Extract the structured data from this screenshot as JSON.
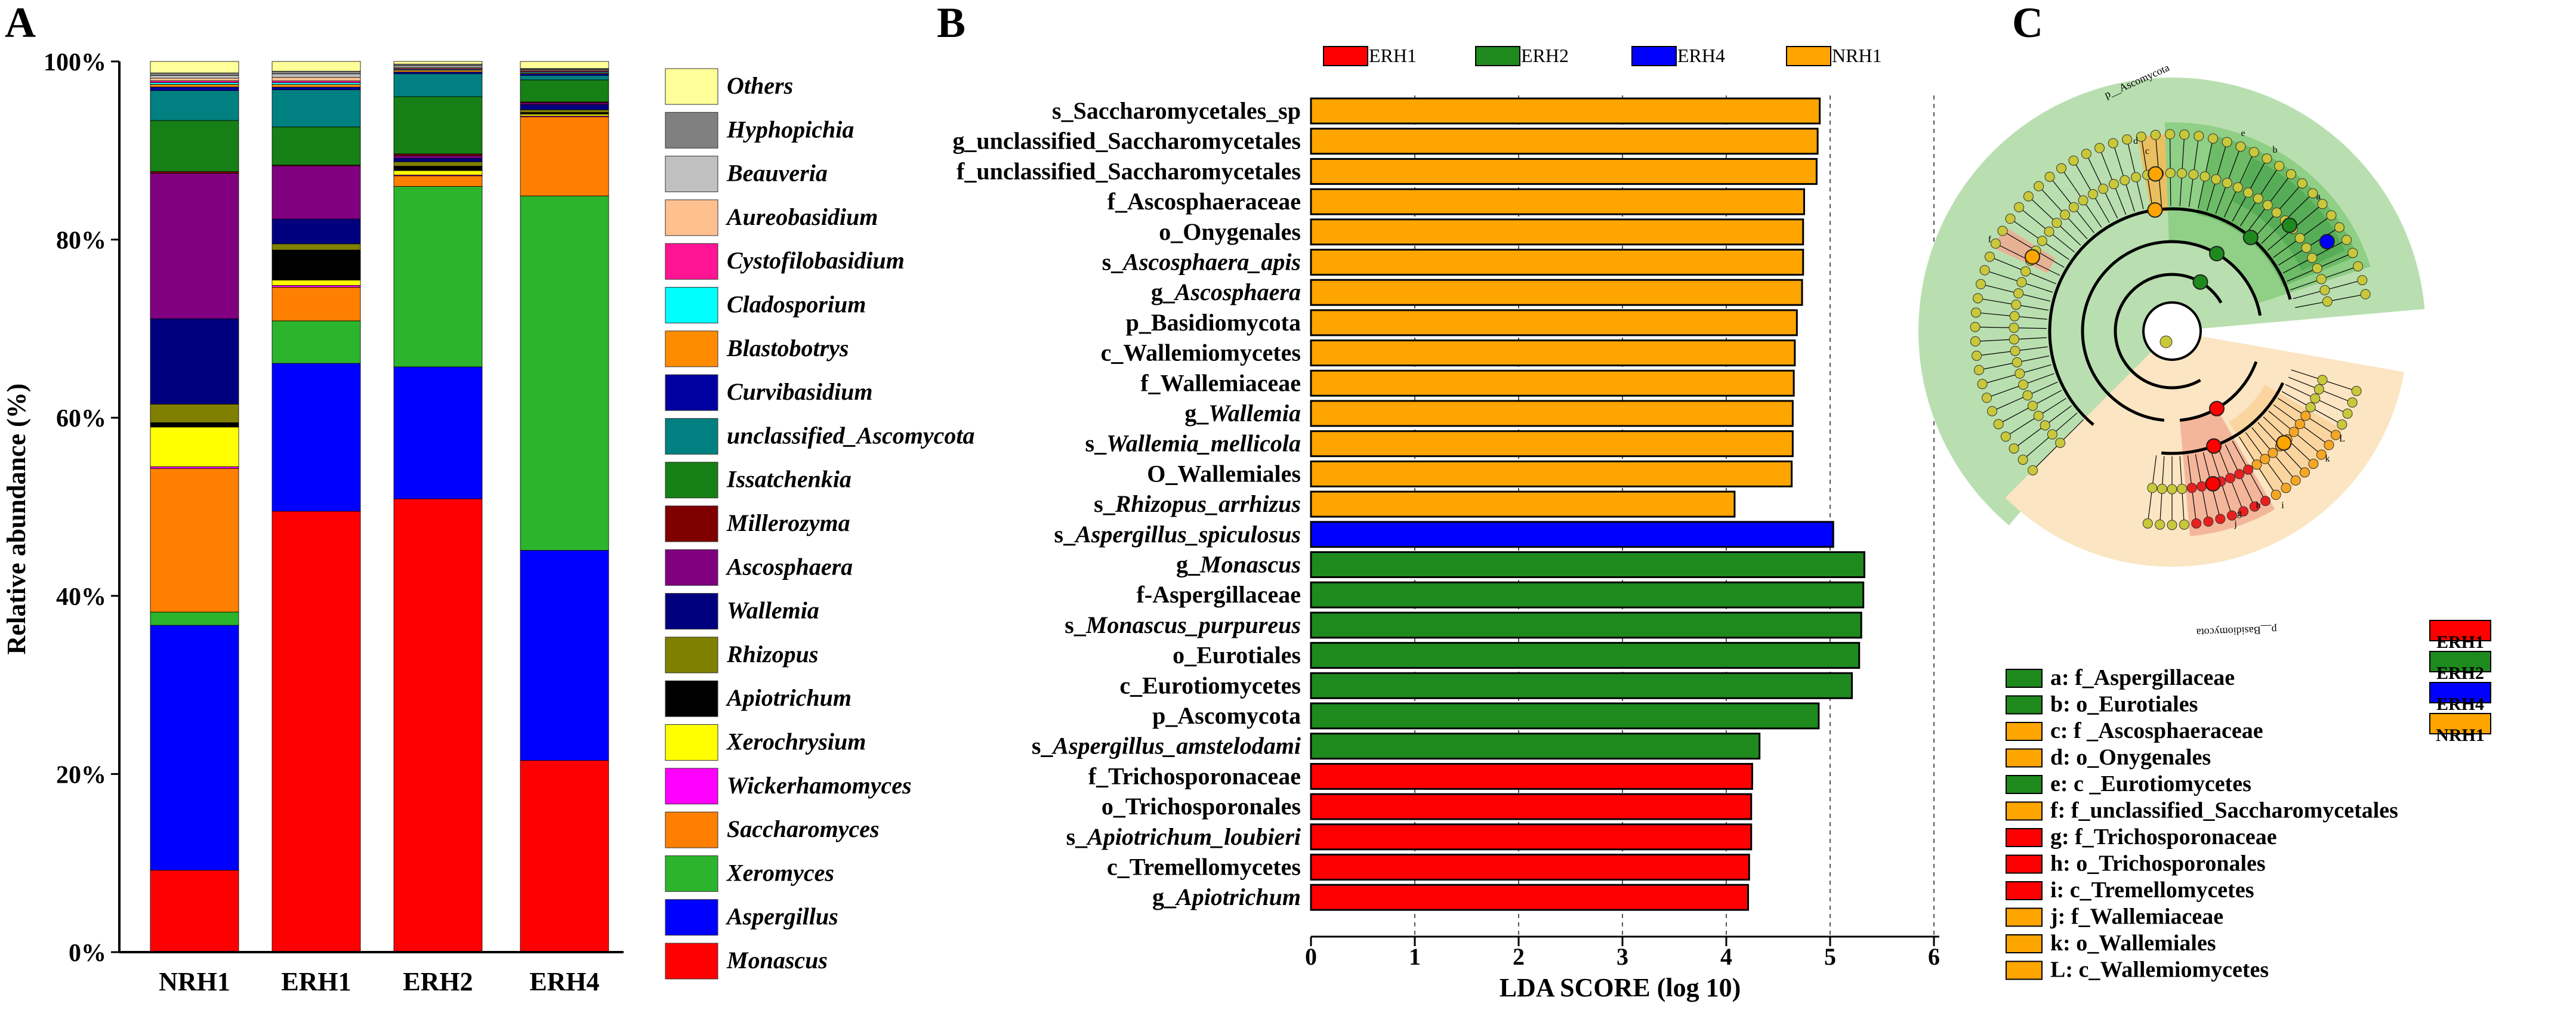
{
  "panels": {
    "a": "A",
    "b": "B",
    "c": "C"
  },
  "colors": {
    "ERH1": "#ff0000",
    "ERH2": "#1e8a1e",
    "ERH4": "#0000ff",
    "NRH1": "#ffa500",
    "grid": "#555555",
    "clade_green": "#b9dfb0",
    "clade_green_dark": "#57ad57",
    "clade_peach": "#fbe5c2",
    "clade_red": "#f2a58e",
    "node": "#c8c83a"
  },
  "chart_data": [
    {
      "id": "A",
      "type": "bar",
      "stacked": true,
      "title": "",
      "xlabel": "",
      "ylabel": "Relative abundance (%)",
      "ylim": [
        0,
        100
      ],
      "yticks": [
        "0%",
        "20%",
        "40%",
        "60%",
        "80%",
        "100%"
      ],
      "categories": [
        "NRH1",
        "ERH1",
        "ERH2",
        "ERH4"
      ],
      "series": [
        {
          "name": "Monascus",
          "color": "#ff0000",
          "values": [
            9.3,
            49.8,
            51.5,
            21.8
          ]
        },
        {
          "name": "Aspergillus",
          "color": "#0000ff",
          "values": [
            27.8,
            16.7,
            15.0,
            23.9
          ]
        },
        {
          "name": "Xeromyces",
          "color": "#2cb52c",
          "values": [
            1.5,
            4.8,
            20.5,
            40.3
          ]
        },
        {
          "name": "Saccharomyces",
          "color": "#ff7f00",
          "values": [
            16.3,
            3.8,
            1.2,
            9.0
          ]
        },
        {
          "name": "Wickerhamomyces",
          "color": "#ff00ff",
          "values": [
            0.2,
            0.2,
            0.1,
            0.1
          ]
        },
        {
          "name": "Xerochrysium",
          "color": "#ffff00",
          "values": [
            4.5,
            0.6,
            0.5,
            0.2
          ]
        },
        {
          "name": "Apiotrichum",
          "color": "#000000",
          "values": [
            0.5,
            3.4,
            0.5,
            0.2
          ]
        },
        {
          "name": "Rhizopus",
          "color": "#808000",
          "values": [
            2.1,
            0.7,
            0.5,
            0.3
          ]
        },
        {
          "name": "Wallemia",
          "color": "#00007f",
          "values": [
            9.7,
            2.8,
            0.4,
            0.6
          ]
        },
        {
          "name": "Ascosphaera",
          "color": "#800080",
          "values": [
            16.5,
            6.0,
            0.3,
            0.2
          ]
        },
        {
          "name": "Millerozyma",
          "color": "#800000",
          "values": [
            0.2,
            0.1,
            0.2,
            0.1
          ]
        },
        {
          "name": "Issatchenkia",
          "color": "#168016",
          "values": [
            5.8,
            4.3,
            6.5,
            2.5
          ]
        },
        {
          "name": "unclassified_Ascomycota",
          "color": "#008080",
          "values": [
            3.4,
            4.2,
            2.6,
            0.5
          ]
        },
        {
          "name": "Curvibasidium",
          "color": "#0000a0",
          "values": [
            0.4,
            0.3,
            0.2,
            0.2
          ]
        },
        {
          "name": "Blastobotrys",
          "color": "#ff8c00",
          "values": [
            0.3,
            0.3,
            0.2,
            0.1
          ]
        },
        {
          "name": "Cladosporium",
          "color": "#00ffff",
          "values": [
            0.2,
            0.2,
            0.1,
            0.1
          ]
        },
        {
          "name": "Cystofilobasidium",
          "color": "#ff1493",
          "values": [
            0.2,
            0.2,
            0.1,
            0.1
          ]
        },
        {
          "name": "Aureobasidium",
          "color": "#ffc090",
          "values": [
            0.3,
            0.4,
            0.1,
            0.1
          ]
        },
        {
          "name": "Beauveria",
          "color": "#c0c0c0",
          "values": [
            0.3,
            0.4,
            0.2,
            0.1
          ]
        },
        {
          "name": "Hyphopichia",
          "color": "#808080",
          "values": [
            0.3,
            0.3,
            0.2,
            0.1
          ]
        },
        {
          "name": "Others",
          "color": "#ffff99",
          "values": [
            1.3,
            1.1,
            0.3,
            0.8
          ]
        }
      ]
    },
    {
      "id": "B",
      "type": "bar",
      "orientation": "horizontal",
      "title": "",
      "xlabel": "LDA SCORE (log 10)",
      "xlim": [
        0,
        6
      ],
      "xticks": [
        "0",
        "1",
        "2",
        "3",
        "4",
        "5",
        "6"
      ],
      "groups": [
        "ERH1",
        "ERH2",
        "ERH4",
        "NRH1"
      ],
      "bars": [
        {
          "label": "s_Saccharomycetales_sp",
          "italic": "",
          "value": 4.9,
          "group": "NRH1"
        },
        {
          "label": "g_unclassified_Saccharomycetales",
          "italic": "",
          "value": 4.88,
          "group": "NRH1"
        },
        {
          "label": "f_unclassified_Saccharomycetales",
          "italic": "",
          "value": 4.87,
          "group": "NRH1"
        },
        {
          "label": "f_Ascosphaeraceae",
          "italic": "",
          "value": 4.75,
          "group": "NRH1"
        },
        {
          "label": "o_Onygenales",
          "italic": "",
          "value": 4.74,
          "group": "NRH1"
        },
        {
          "label": "s_",
          "italic": "Ascosphaera_apis",
          "value": 4.74,
          "group": "NRH1"
        },
        {
          "label": "g_",
          "italic": "Ascosphaera",
          "value": 4.73,
          "group": "NRH1"
        },
        {
          "label": "p_Basidiomycota",
          "italic": "",
          "value": 4.68,
          "group": "NRH1"
        },
        {
          "label": "c_Wallemiomycetes",
          "italic": "",
          "value": 4.66,
          "group": "NRH1"
        },
        {
          "label": "f_Wallemiaceae",
          "italic": "",
          "value": 4.65,
          "group": "NRH1"
        },
        {
          "label": "g_",
          "italic": "Wallemia",
          "value": 4.64,
          "group": "NRH1"
        },
        {
          "label": "s_",
          "italic": "Wallemia_mellicola",
          "value": 4.64,
          "group": "NRH1"
        },
        {
          "label": "O_Wallemiales",
          "italic": "",
          "value": 4.63,
          "group": "NRH1"
        },
        {
          "label": "s_",
          "italic": "Rhizopus_arrhizus",
          "value": 4.08,
          "group": "NRH1"
        },
        {
          "label": "s_",
          "italic": "Aspergillus_spiculosus",
          "value": 5.03,
          "group": "ERH4"
        },
        {
          "label": "g_",
          "italic": "Monascus",
          "value": 5.33,
          "group": "ERH2"
        },
        {
          "label": "f-Aspergillaceae",
          "italic": "",
          "value": 5.32,
          "group": "ERH2"
        },
        {
          "label": "s_",
          "italic": "Monascus_purpureus",
          "value": 5.3,
          "group": "ERH2"
        },
        {
          "label": "o_Eurotiales",
          "italic": "",
          "value": 5.28,
          "group": "ERH2"
        },
        {
          "label": "c_Eurotiomycetes",
          "italic": "",
          "value": 5.21,
          "group": "ERH2"
        },
        {
          "label": "p_Ascomycota",
          "italic": "",
          "value": 4.89,
          "group": "ERH2"
        },
        {
          "label": "s_",
          "italic": "Aspergillus_amstelodami",
          "value": 4.32,
          "group": "ERH2"
        },
        {
          "label": "f_Trichosporonaceae",
          "italic": "",
          "value": 4.25,
          "group": "ERH1"
        },
        {
          "label": "o_Trichosporonales",
          "italic": "",
          "value": 4.24,
          "group": "ERH1"
        },
        {
          "label": "s_",
          "italic": "Apiotrichum_loubieri",
          "value": 4.24,
          "group": "ERH1"
        },
        {
          "label": "c_Tremellomycetes",
          "italic": "",
          "value": 4.22,
          "group": "ERH1"
        },
        {
          "label": "g_",
          "italic": "Apiotrichum",
          "value": 4.21,
          "group": "ERH1"
        }
      ]
    }
  ],
  "cladogram": {
    "clade_labels": [
      "p__Ascomycota",
      "p__Basidiomycota"
    ],
    "node_letters": [
      "a",
      "b",
      "c",
      "d",
      "e",
      "f",
      "g",
      "h",
      "i",
      "j",
      "k",
      "L"
    ],
    "legend_groups": [
      "ERH1",
      "ERH2",
      "ERH4",
      "NRH1"
    ],
    "key": [
      {
        "text": "a: f_Aspergillaceae",
        "group": "ERH2"
      },
      {
        "text": "b: o_Eurotiales",
        "group": "ERH2"
      },
      {
        "text": "c: f _Ascosphaeraceae",
        "group": "NRH1"
      },
      {
        "text": "d: o_Onygenales",
        "group": "NRH1"
      },
      {
        "text": "e: c _Eurotiomycetes",
        "group": "ERH2"
      },
      {
        "text": "f: f_unclassified_Saccharomycetales",
        "group": "NRH1"
      },
      {
        "text": "g: f_Trichosporonaceae",
        "group": "ERH1"
      },
      {
        "text": "h: o_Trichosporonales",
        "group": "ERH1"
      },
      {
        "text": "i: c_Tremellomycetes",
        "group": "ERH1"
      },
      {
        "text": "j: f_Wallemiaceae",
        "group": "NRH1"
      },
      {
        "text": "k: o_Wallemiales",
        "group": "NRH1"
      },
      {
        "text": "L: c_Wallemiomycetes",
        "group": "NRH1"
      }
    ]
  }
}
